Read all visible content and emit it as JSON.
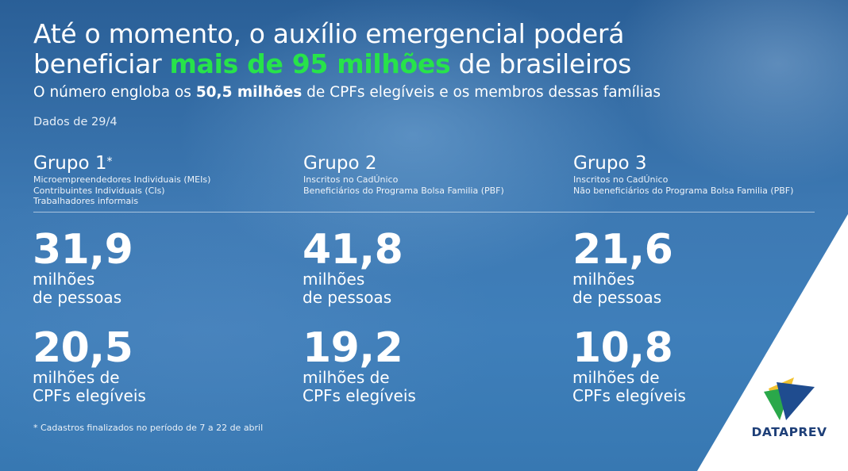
{
  "headline": {
    "line1": "Até o momento, o auxílio emergencial poderá",
    "line2_prefix": "beneficiar ",
    "line2_highlight": "mais de 95 milhões",
    "line2_suffix": " de brasileiros"
  },
  "subtitle": {
    "prefix": "O número engloba os ",
    "bold": "50,5 milhões",
    "suffix": " de CPFs elegíveis e os membros dessas famílias"
  },
  "date_note": "Dados de 29/4",
  "groups": [
    {
      "title": "Grupo 1",
      "marker": "*",
      "desc": [
        "Microempreendedores Individuais (MEIs)",
        "Contribuintes Individuais (CIs)",
        "Trabalhadores informais"
      ],
      "people_value": "31,9",
      "people_label_1": "milhões",
      "people_label_2": "de pessoas",
      "cpf_value": "20,5",
      "cpf_label_1": "milhões de",
      "cpf_label_2": "CPFs elegíveis"
    },
    {
      "title": "Grupo 2",
      "marker": "",
      "desc": [
        "Inscritos no CadÚnico",
        "Beneficiários do Programa Bolsa Familia (PBF)"
      ],
      "people_value": "41,8",
      "people_label_1": "milhões",
      "people_label_2": "de pessoas",
      "cpf_value": "19,2",
      "cpf_label_1": "milhões de",
      "cpf_label_2": "CPFs elegíveis"
    },
    {
      "title": "Grupo 3",
      "marker": "",
      "desc": [
        "Inscritos no CadÚnico",
        "Não beneficiários do Programa Bolsa Familia (PBF)"
      ],
      "people_value": "21,6",
      "people_label_1": "milhões",
      "people_label_2": "de pessoas",
      "cpf_value": "10,8",
      "cpf_label_1": "milhões de",
      "cpf_label_2": "CPFs elegíveis"
    }
  ],
  "footnote": "* Cadastros finalizados no período de 7 a 22 de abril",
  "logo": {
    "text": "DATAPREV",
    "icon": "dataprev-logo-icon"
  },
  "colors": {
    "highlight": "#27e34a",
    "text": "#ffffff",
    "logo_text": "#1e3f78",
    "logo_blue": "#1f4c8f",
    "logo_yellow": "#f2c230",
    "logo_green": "#2aa84a"
  }
}
